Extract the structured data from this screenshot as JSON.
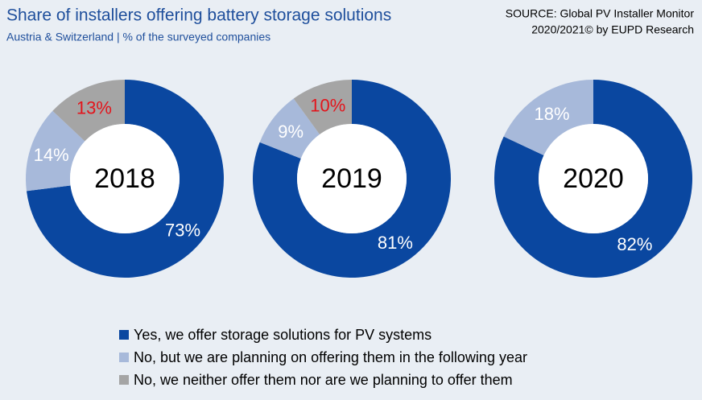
{
  "header": {
    "title": "Share of installers offering battery storage solutions",
    "subtitle": "Austria & Switzerland | % of the surveyed companies",
    "source": [
      "SOURCE: Global PV Installer Monitor",
      "2020/2021© by EUPD Research"
    ]
  },
  "chart_data": [
    {
      "type": "donut",
      "center_label": "2018",
      "categories": [
        "Yes, we offer storage solutions for PV systems",
        "No, but we are planning on offering them in the following year",
        "No, we neither offer them nor are we planning to offer them"
      ],
      "values": [
        73,
        14,
        13
      ],
      "value_labels": [
        "73%",
        "14%",
        "13%"
      ],
      "colors": [
        "#0a47a0",
        "#a7b9da",
        "#a5a5a5"
      ],
      "label_colors": [
        "#ffffff",
        "#ffffff",
        "#e3141b"
      ]
    },
    {
      "type": "donut",
      "center_label": "2019",
      "categories": [
        "Yes, we offer storage solutions for PV systems",
        "No, but we are planning on offering them in the following year",
        "No, we neither offer them nor are we planning to offer them"
      ],
      "values": [
        81,
        9,
        10
      ],
      "value_labels": [
        "81%",
        "9%",
        "10%"
      ],
      "colors": [
        "#0a47a0",
        "#a7b9da",
        "#a5a5a5"
      ],
      "label_colors": [
        "#ffffff",
        "#ffffff",
        "#e3141b"
      ]
    },
    {
      "type": "donut",
      "center_label": "2020",
      "categories": [
        "Yes, we offer storage solutions for PV systems",
        "No, but we are planning on offering them in the following year"
      ],
      "values": [
        82,
        18
      ],
      "value_labels": [
        "82%",
        "18%"
      ],
      "colors": [
        "#0a47a0",
        "#a7b9da"
      ],
      "label_colors": [
        "#ffffff",
        "#ffffff"
      ]
    }
  ]
}
